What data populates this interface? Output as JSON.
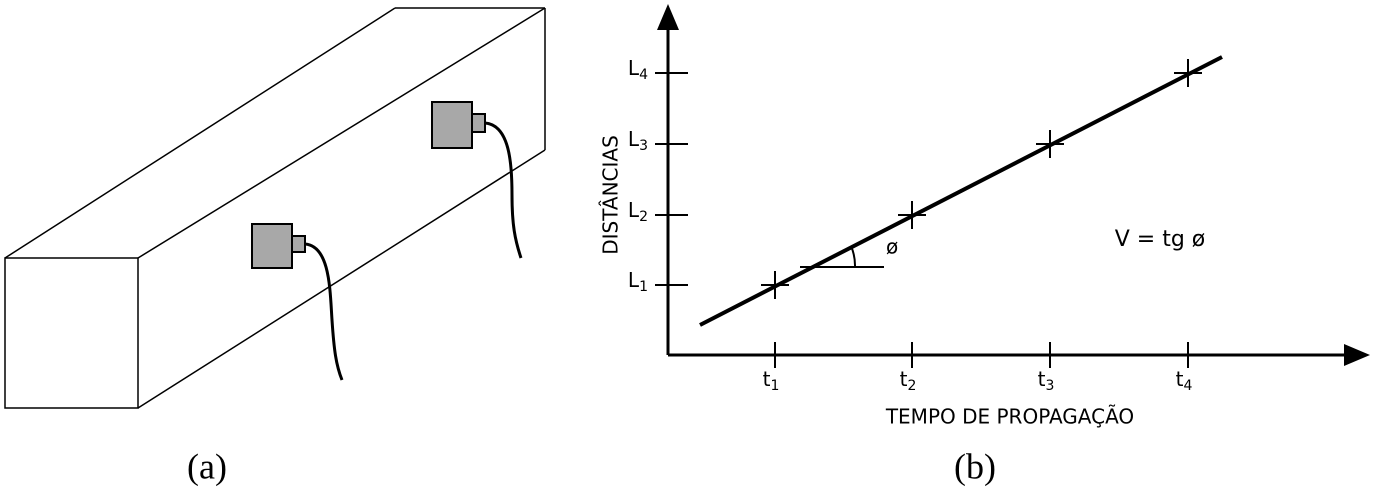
{
  "panels": {
    "a": {
      "caption": "(a)"
    },
    "b": {
      "caption": "(b)",
      "y_axis_title": "DISTÂNCIAS",
      "x_axis_title": "TEMPO DE PROPAGAÇÃO",
      "y_ticks": [
        {
          "base": "L",
          "sub": "1"
        },
        {
          "base": "L",
          "sub": "2"
        },
        {
          "base": "L",
          "sub": "3"
        },
        {
          "base": "L",
          "sub": "4"
        }
      ],
      "x_ticks": [
        {
          "base": "t",
          "sub": "1"
        },
        {
          "base": "t",
          "sub": "2"
        },
        {
          "base": "t",
          "sub": "3"
        },
        {
          "base": "t",
          "sub": "4"
        }
      ],
      "angle_label": "ø",
      "formula": "V = tg ø"
    }
  }
}
